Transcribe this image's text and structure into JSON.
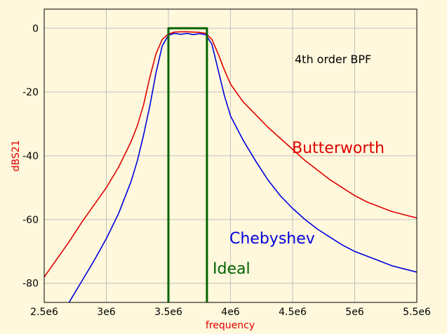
{
  "chart_data": {
    "type": "line",
    "title": "",
    "xlabel": "frequency",
    "ylabel": "dBS21",
    "xlim": [
      2500000,
      5500000
    ],
    "ylim": [
      -86,
      6
    ],
    "xticks": [
      2500000,
      3000000,
      3500000,
      4000000,
      4500000,
      5000000,
      5500000
    ],
    "xtick_labels": [
      "2.5e6",
      "3e6",
      "3.5e6",
      "4e6",
      "4.5e6",
      "5e6",
      "5.5e6"
    ],
    "yticks": [
      0,
      -20,
      -40,
      -60,
      -80
    ],
    "ytick_labels": [
      "0",
      "-20",
      "-40",
      "-60",
      "-80"
    ],
    "grid": true,
    "colors": {
      "background": "#fff8dc",
      "grid": "#c0c0c0",
      "xlabel": "#e00000",
      "ylabel": "#e00000"
    },
    "annotation": "4th order BPF",
    "series": [
      {
        "name": "Butterworth",
        "color": "#e00000",
        "x": [
          2500000,
          2600000,
          2700000,
          2800000,
          2900000,
          3000000,
          3100000,
          3200000,
          3250000,
          3300000,
          3350000,
          3400000,
          3450000,
          3500000,
          3550000,
          3600000,
          3650000,
          3700000,
          3750000,
          3800000,
          3850000,
          3900000,
          3950000,
          4000000,
          4100000,
          4200000,
          4300000,
          4400000,
          4500000,
          4600000,
          4700000,
          4800000,
          4900000,
          5000000,
          5100000,
          5200000,
          5300000,
          5400000,
          5500000
        ],
        "y": [
          -78,
          -72.5,
          -67,
          -61,
          -55.5,
          -50,
          -43.5,
          -35.5,
          -30.5,
          -24,
          -15.5,
          -8,
          -3.5,
          -1.8,
          -1.2,
          -1.1,
          -1.1,
          -1.2,
          -1.3,
          -1.6,
          -3.5,
          -8,
          -13,
          -17.5,
          -23,
          -27,
          -31,
          -34.5,
          -38,
          -41.5,
          -44.5,
          -47.5,
          -50,
          -52.5,
          -54.5,
          -56,
          -57.5,
          -58.5,
          -59.5
        ]
      },
      {
        "name": "Chebyshev",
        "color": "#0000dd",
        "x": [
          2700000,
          2800000,
          2900000,
          3000000,
          3100000,
          3200000,
          3250000,
          3300000,
          3350000,
          3400000,
          3450000,
          3500000,
          3550000,
          3600000,
          3650000,
          3700000,
          3750000,
          3800000,
          3850000,
          3900000,
          3950000,
          4000000,
          4100000,
          4200000,
          4300000,
          4400000,
          4500000,
          4600000,
          4700000,
          4800000,
          4900000,
          5000000,
          5100000,
          5200000,
          5300000,
          5400000,
          5500000
        ],
        "y": [
          -86,
          -79.5,
          -73,
          -66,
          -58,
          -48,
          -41.5,
          -33.5,
          -24.5,
          -14,
          -5.5,
          -2.2,
          -1.6,
          -1.9,
          -1.6,
          -2,
          -1.7,
          -2,
          -5,
          -13,
          -21,
          -27.5,
          -35,
          -41.5,
          -47.5,
          -52.5,
          -56.5,
          -60,
          -63,
          -65.5,
          -68,
          -70,
          -71.5,
          -73,
          -74.5,
          -75.5,
          -76.5
        ]
      },
      {
        "name": "Ideal",
        "color": "#006400",
        "x": [
          3500000,
          3500000,
          3810000,
          3810000
        ],
        "y": [
          -86,
          0,
          0,
          -86
        ]
      }
    ]
  }
}
